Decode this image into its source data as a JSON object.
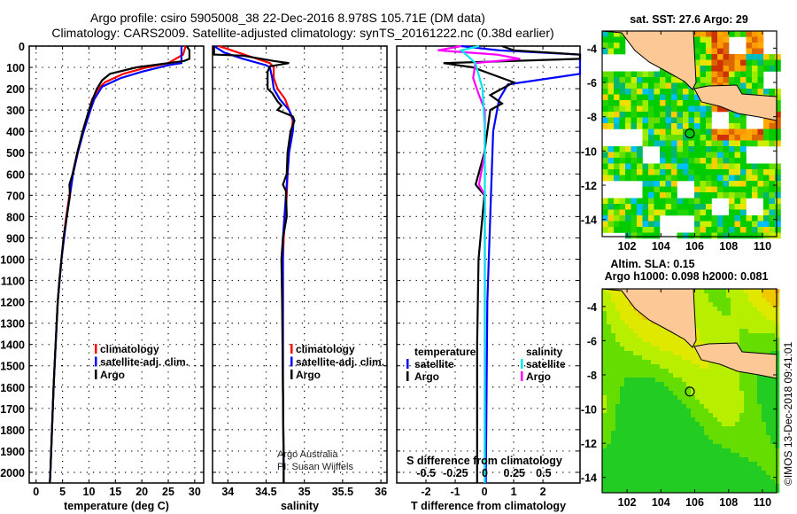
{
  "header": {
    "title_line1": "Argo profile: csiro 5905008_38 22-Dec-2016 8.978S 105.71E (DM data)",
    "title_line2": "Climatology: CARS2009. Satellite-adjusted climatology: synTS_20161222.nc (0.38d earlier)"
  },
  "colors": {
    "climatology": "#ff0000",
    "satellite": "#0000ff",
    "argo": "#000000",
    "sal_satellite": "#00e5ee",
    "sal_argo": "#ff00ff",
    "land": "#fcc895"
  },
  "chart_data": [
    {
      "type": "line",
      "name": "temperature-profile",
      "xlabel": "temperature (deg C)",
      "ylabel": "",
      "xlim": [
        -1.3,
        31.7
      ],
      "ylim": [
        2050,
        0
      ],
      "xticks": [
        0,
        5,
        10,
        15,
        20,
        25,
        30
      ],
      "yticks": [
        0,
        100,
        200,
        300,
        400,
        500,
        600,
        700,
        800,
        900,
        1000,
        1100,
        1200,
        1300,
        1400,
        1500,
        1600,
        1700,
        1800,
        1900,
        2000
      ],
      "grid": true,
      "legend_position": "center-right",
      "series": [
        {
          "name": "climatology",
          "color": "#ff0000",
          "depth": [
            0,
            40,
            80,
            100,
            130,
            170,
            200,
            250,
            300,
            400,
            500,
            600,
            700,
            800,
            900,
            1000,
            1200,
            1400,
            1600,
            1800,
            2000,
            2050
          ],
          "values": [
            28.3,
            27.8,
            25,
            21,
            16.5,
            13,
            11.8,
            10.6,
            10,
            8.9,
            7.8,
            6.9,
            6.3,
            5.7,
            5.2,
            4.8,
            4.1,
            3.7,
            3.3,
            3.0,
            2.7,
            2.6
          ]
        },
        {
          "name": "satellite-adj. clim.",
          "color": "#0000ff",
          "depth": [
            0,
            80,
            90,
            120,
            150,
            190,
            250,
            300,
            400,
            500,
            600,
            700,
            800,
            900,
            1000,
            1200,
            1400,
            1600,
            1800,
            2000,
            2050
          ],
          "values": [
            27.5,
            27.5,
            25,
            20,
            16,
            12.5,
            11,
            10.3,
            9,
            7.9,
            7,
            6.4,
            5.8,
            5.3,
            4.8,
            4.1,
            3.7,
            3.3,
            3.0,
            2.7,
            2.6
          ]
        },
        {
          "name": "Argo",
          "color": "#000000",
          "depth": [
            0,
            20,
            60,
            70,
            90,
            100,
            130,
            160,
            200,
            250,
            300,
            400,
            500,
            600,
            650,
            700,
            800,
            900,
            1000,
            1100,
            1200,
            1400,
            1600,
            1800,
            2000,
            2050
          ],
          "values": [
            28.5,
            29,
            29,
            28,
            22,
            19,
            14,
            12.5,
            11.5,
            10.7,
            10,
            8.8,
            7.8,
            6.9,
            6.3,
            6.4,
            5.8,
            5.2,
            4.8,
            4.4,
            4.1,
            3.7,
            3.3,
            3.0,
            2.7,
            2.6
          ]
        }
      ]
    },
    {
      "type": "line",
      "name": "salinity-profile",
      "xlabel": "salinity",
      "xlim": [
        33.8,
        36.08
      ],
      "ylim": [
        2050,
        0
      ],
      "xticks": [
        34,
        34.5,
        35,
        35.5,
        36
      ],
      "xtick_labels": [
        "34",
        "34.5",
        "35",
        "35.5",
        "36"
      ],
      "grid": true,
      "legend_position": "center-right",
      "annotations": [
        "Argo Australia",
        "PI: Susan Wijffels"
      ],
      "series": [
        {
          "name": "climatology",
          "color": "#ff0000",
          "depth": [
            0,
            20,
            50,
            80,
            100,
            150,
            200,
            250,
            300,
            350,
            400,
            500,
            600,
            700,
            800,
            900,
            1000,
            1200,
            1600,
            2000,
            2050
          ],
          "values": [
            33.88,
            34.05,
            34.3,
            34.55,
            34.6,
            34.6,
            34.65,
            34.75,
            34.8,
            34.85,
            34.83,
            34.8,
            34.78,
            34.77,
            34.75,
            34.73,
            34.72,
            34.72,
            34.72,
            34.73,
            34.73
          ]
        },
        {
          "name": "satellite-adj. clim.",
          "color": "#0000ff",
          "depth": [
            0,
            30,
            60,
            90,
            100,
            150,
            200,
            250,
            300,
            350,
            400,
            500,
            600,
            700,
            800,
            900,
            1000,
            1200,
            1600,
            2000,
            2050
          ],
          "values": [
            33.82,
            33.95,
            34.2,
            34.5,
            34.55,
            34.58,
            34.6,
            34.68,
            34.8,
            34.86,
            34.85,
            34.8,
            34.78,
            34.76,
            34.74,
            34.72,
            34.72,
            34.72,
            34.72,
            34.73,
            34.73
          ]
        },
        {
          "name": "Argo",
          "color": "#000000",
          "depth": [
            0,
            40,
            45,
            70,
            80,
            95,
            120,
            200,
            220,
            260,
            280,
            300,
            330,
            350,
            400,
            500,
            600,
            650,
            680,
            800,
            900,
            1000,
            1200,
            1600,
            2000,
            2050
          ],
          "values": [
            33.82,
            33.82,
            34.2,
            34.6,
            34.8,
            34.55,
            34.52,
            34.52,
            34.58,
            34.65,
            34.7,
            34.65,
            34.85,
            34.87,
            34.82,
            34.78,
            34.77,
            34.72,
            34.76,
            34.77,
            34.72,
            34.7,
            34.71,
            34.72,
            34.73,
            34.73
          ]
        }
      ]
    },
    {
      "type": "line",
      "name": "difference-profile",
      "xlabel": "T difference from climatology",
      "xlabel_top": "S difference from climatology",
      "xlim": [
        -3,
        3.27
      ],
      "xlim_S": [
        -0.75,
        0.81
      ],
      "ylim": [
        2050,
        0
      ],
      "xticks": [
        -2,
        -1,
        0,
        1,
        2
      ],
      "xticks_S": [
        -0.5,
        -0.25,
        0,
        0.25,
        0.5
      ],
      "xtick_labels_S": [
        "-0.5",
        "-0.25",
        "0",
        "0.25",
        "0.5"
      ],
      "grid": true,
      "legend": {
        "temperature_heading": "temperature",
        "salinity_heading": "salinity",
        "satellite": "satellite",
        "argo": "Argo"
      },
      "series": [
        {
          "name": "temperature satellite",
          "var": "T",
          "color": "#0000ff",
          "depth": [
            0,
            20,
            40,
            90,
            130,
            180,
            250,
            400,
            800,
            1200,
            2000,
            2050
          ],
          "values": [
            -0.8,
            0.5,
            3.5,
            3.5,
            3.5,
            0.8,
            0.5,
            0.3,
            0.2,
            0.1,
            0.05,
            0.05
          ]
        },
        {
          "name": "temperature Argo",
          "var": "T",
          "color": "#000000",
          "depth": [
            0,
            20,
            40,
            60,
            80,
            100,
            170,
            230,
            270,
            300,
            500,
            650,
            700,
            1000,
            1400,
            2000,
            2050
          ],
          "values": [
            0.6,
            1.0,
            3.5,
            3.5,
            -1.4,
            -0.4,
            1.0,
            0.2,
            0.6,
            0.2,
            0,
            -0.3,
            0,
            -0.2,
            -0.25,
            -0.25,
            -0.25
          ]
        },
        {
          "name": "salinity Argo",
          "var": "S",
          "color": "#ff00ff",
          "depth": [
            0,
            20,
            40,
            60,
            80,
            150,
            230,
            300,
            500,
            650,
            700,
            1000,
            2000,
            2050
          ],
          "values": [
            -0.2,
            -0.4,
            0.1,
            0.3,
            -0.08,
            -0.1,
            -0.05,
            0,
            0,
            -0.05,
            0,
            0,
            0,
            0
          ]
        },
        {
          "name": "salinity satellite",
          "var": "S",
          "color": "#00e5ee",
          "depth": [
            0,
            20,
            80,
            200,
            400,
            1000,
            2000,
            2050
          ],
          "values": [
            -0.05,
            -0.2,
            -0.08,
            -0.02,
            0,
            0,
            0,
            0
          ]
        }
      ]
    }
  ],
  "legend_labels": [
    "climatology",
    "satellite-adj. clim.",
    "Argo"
  ],
  "maps": {
    "sst_title": "sat. SST: 27.6 Argo: 29",
    "sla_title1": "Altim. SLA: 0.15",
    "sla_title2": "Argo h1000: 0.098 h2000: 0.081",
    "lon_ticks": [
      "102",
      "104",
      "106",
      "108",
      "110"
    ],
    "lat_ticks": [
      "-4",
      "-6",
      "-8",
      "-10",
      "-12",
      "-14"
    ],
    "float_position": {
      "lon": 105.71,
      "lat": -8.978
    }
  },
  "credit": "©IMOS 13-Dec-2018 09:41:01"
}
